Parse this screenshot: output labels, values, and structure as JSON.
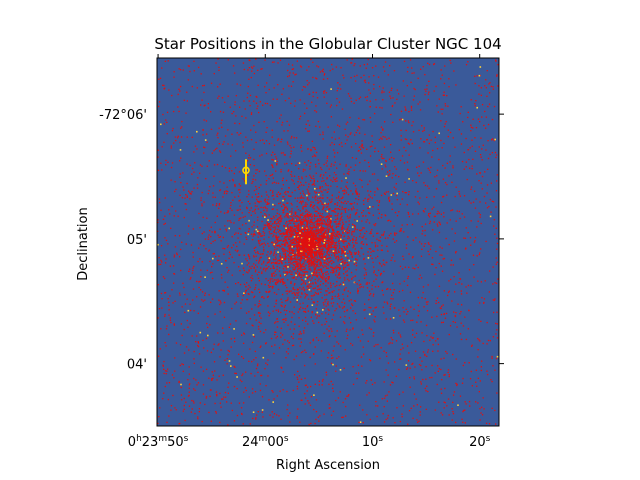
{
  "chart_data": {
    "type": "scatter",
    "title": "Star Positions in the Globular Cluster NGC 104",
    "xlabel": "Right Ascension",
    "ylabel": "Declination",
    "x_ticks": [
      {
        "label": "0h23m50s",
        "ra_seconds": 50
      },
      {
        "label": "24m00s",
        "ra_seconds": 60
      },
      {
        "label": "10s",
        "ra_seconds": 70
      },
      {
        "label": "20s",
        "ra_seconds": 80
      }
    ],
    "y_ticks": [
      {
        "label": "-72°06'",
        "dec_arcmin_offset": 6
      },
      {
        "label": "05'",
        "dec_arcmin_offset": 5
      },
      {
        "label": "04'",
        "dec_arcmin_offset": 4
      }
    ],
    "xlim_ra_seconds": [
      49.9,
      81.8
    ],
    "ylim_dec_arcmin_offset": [
      3.5,
      6.45
    ],
    "cluster_center": {
      "ra_seconds": 64,
      "dec_arcmin_offset": 4.98
    },
    "marker": {
      "ra_seconds": 58.2,
      "dec_arcmin_offset": 5.55,
      "color": "#ffd700"
    },
    "colors": {
      "background": "#3a5a9a",
      "stars": "#e01010",
      "bright_stars": "#ffd23a"
    },
    "grid": false
  }
}
